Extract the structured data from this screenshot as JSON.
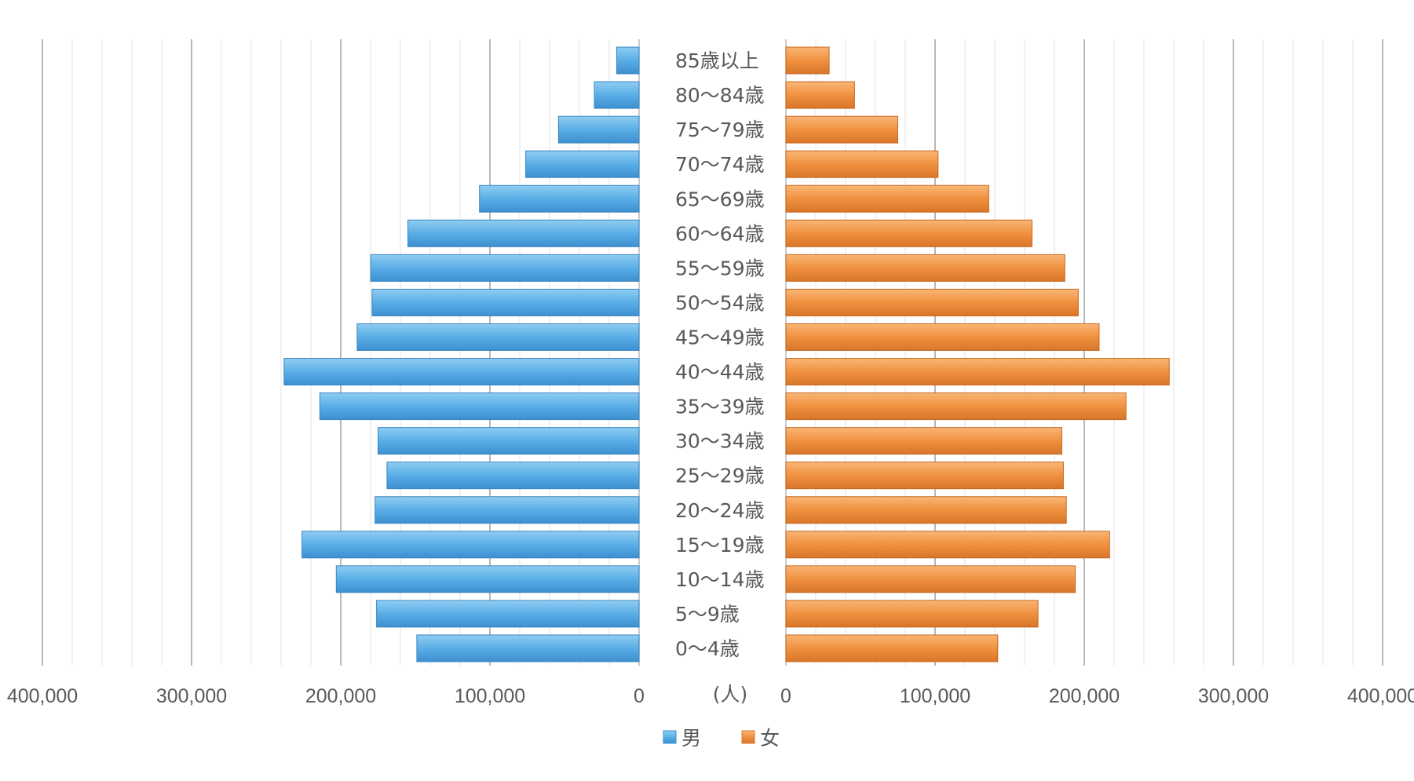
{
  "chart_data": {
    "type": "bar",
    "orientation": "horizontal-population-pyramid",
    "categories": [
      "0〜4歳",
      "5〜9歳",
      "10〜14歳",
      "15〜19歳",
      "20〜24歳",
      "25〜29歳",
      "30〜34歳",
      "35〜39歳",
      "40〜44歳",
      "45〜49歳",
      "50〜54歳",
      "55〜59歳",
      "60〜64歳",
      "65〜69歳",
      "70〜74歳",
      "75〜79歳",
      "80〜84歳",
      "85歳以上"
    ],
    "series": [
      {
        "name": "男",
        "color": "#5DADE2",
        "side": "left",
        "values": [
          149000,
          176000,
          203000,
          226000,
          177000,
          169000,
          175000,
          214000,
          238000,
          189000,
          179000,
          180000,
          155000,
          107000,
          76000,
          54000,
          30000,
          15000
        ]
      },
      {
        "name": "女",
        "color": "#F39B4C",
        "side": "right",
        "values": [
          142000,
          169000,
          194000,
          217000,
          188000,
          186000,
          185000,
          228000,
          257000,
          210000,
          196000,
          187000,
          165000,
          136000,
          102000,
          75000,
          46000,
          29000
        ]
      }
    ],
    "xlim": [
      0,
      400000
    ],
    "x_ticks": [
      0,
      100000,
      200000,
      300000,
      400000
    ],
    "x_tick_labels": [
      "0",
      "100,000",
      "200,000",
      "300,000",
      "400,000"
    ],
    "unit_label": "(人)",
    "grid": true,
    "legend": {
      "placement": "bottom",
      "entries": [
        "男",
        "女"
      ]
    }
  }
}
